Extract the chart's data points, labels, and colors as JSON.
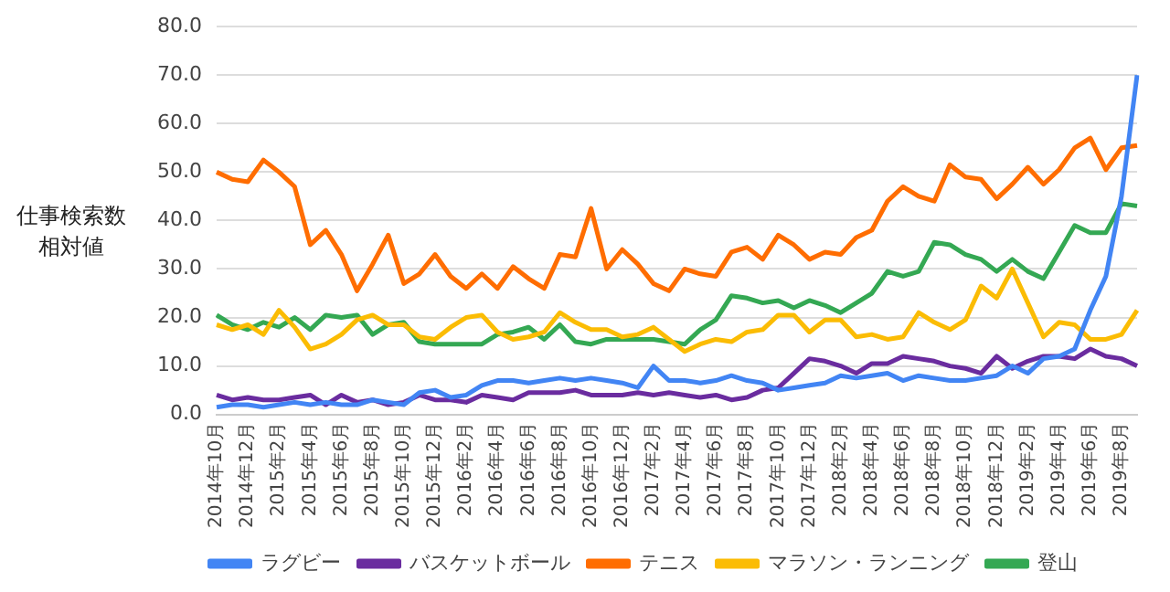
{
  "chart_data": {
    "type": "line",
    "ylabel": "仕事検索数相対値",
    "categories": [
      "2014年10月",
      null,
      "2014年12月",
      null,
      "2015年2月",
      null,
      "2015年4月",
      null,
      "2015年6月",
      null,
      "2015年8月",
      null,
      "2015年10月",
      null,
      "2015年12月",
      null,
      "2016年2月",
      null,
      "2016年4月",
      null,
      "2016年6月",
      null,
      "2016年8月",
      null,
      "2016年10月",
      null,
      "2016年12月",
      null,
      "2017年2月",
      null,
      "2017年4月",
      null,
      "2017年6月",
      null,
      "2017年8月",
      null,
      "2017年10月",
      null,
      "2017年12月",
      null,
      "2018年2月",
      null,
      "2018年4月",
      null,
      "2018年6月",
      null,
      "2018年8月",
      null,
      "2018年10月",
      null,
      "2018年12月",
      null,
      "2019年2月",
      null,
      "2019年4月",
      null,
      "2019年6月",
      null,
      "2019年8月",
      null
    ],
    "series": [
      {
        "name": "ラグビー",
        "color": "#4285f4",
        "values": [
          1.5,
          2,
          2,
          1.5,
          2,
          2.5,
          2,
          2.5,
          2,
          2,
          3,
          2.5,
          2,
          4.5,
          5,
          3.5,
          4,
          6,
          7,
          7,
          6.5,
          7,
          7.5,
          7,
          7.5,
          7,
          6.5,
          5.5,
          10,
          7,
          7,
          6.5,
          7,
          8,
          7,
          6.5,
          5,
          5.5,
          6,
          6.5,
          8,
          7.5,
          8,
          8.5,
          7,
          8,
          7.5,
          7,
          7,
          7.5,
          8,
          10,
          8.5,
          11.5,
          12,
          13.5,
          21.5,
          28.5,
          45,
          70
        ]
      },
      {
        "name": "バスケットボール",
        "color": "#6a2c9f",
        "values": [
          4,
          3,
          3.5,
          3,
          3,
          3.5,
          4,
          2,
          4,
          2.5,
          3,
          2,
          2.5,
          4,
          3,
          3,
          2.5,
          4,
          3.5,
          3,
          4.5,
          4.5,
          4.5,
          5,
          4,
          4,
          4,
          4.5,
          4,
          4.5,
          4,
          3.5,
          4,
          3,
          3.5,
          5,
          5.5,
          8.5,
          11.5,
          11,
          10,
          8.5,
          10.5,
          10.5,
          12,
          11.5,
          11,
          10,
          9.5,
          8.5,
          12,
          9.5,
          11,
          12,
          12,
          11.5,
          13.5,
          12,
          11.5,
          10
        ]
      },
      {
        "name": "テニス",
        "color": "#ff6d01",
        "values": [
          50,
          48.5,
          48,
          52.5,
          50,
          47,
          35,
          38,
          33,
          25.5,
          31,
          37,
          27,
          29,
          33,
          28.5,
          26,
          29,
          26,
          30.5,
          28,
          26,
          33,
          32.5,
          42.5,
          30,
          34,
          31,
          27,
          25.5,
          30,
          29,
          28.5,
          33.5,
          34.5,
          32,
          37,
          35,
          32,
          33.5,
          33,
          36.5,
          38,
          44,
          47,
          45,
          44,
          51.5,
          49,
          48.5,
          44.5,
          47.5,
          51,
          47.5,
          50.5,
          55,
          57,
          50.5,
          55,
          55.5
        ]
      },
      {
        "name": "マラソン・ランニング",
        "color": "#fbbc04",
        "values": [
          18.5,
          17.5,
          18.5,
          16.5,
          21.5,
          18,
          13.5,
          14.5,
          16.5,
          19.5,
          20.5,
          18.5,
          18.5,
          16,
          15.5,
          18,
          20,
          20.5,
          17,
          15.5,
          16,
          17,
          21,
          19,
          17.5,
          17.5,
          16,
          16.5,
          18,
          15.5,
          13,
          14.5,
          15.5,
          15,
          17,
          17.5,
          20.5,
          20.5,
          17,
          19.5,
          19.5,
          16,
          16.5,
          15.5,
          16,
          21,
          19,
          17.5,
          19.5,
          26.5,
          24,
          30,
          23,
          16,
          19,
          18.5,
          15.5,
          15.5,
          16.5,
          21.5
        ]
      },
      {
        "name": "登山",
        "color": "#34a853",
        "values": [
          20.5,
          18.5,
          17.5,
          19,
          18,
          20,
          17.5,
          20.5,
          20,
          20.5,
          16.5,
          18.5,
          19,
          15,
          14.5,
          14.5,
          14.5,
          14.5,
          16.5,
          17,
          18,
          15.5,
          18.5,
          15,
          14.5,
          15.5,
          15.5,
          15.5,
          15.5,
          15,
          14.5,
          17.5,
          19.5,
          24.5,
          24,
          23,
          23.5,
          22,
          23.5,
          22.5,
          21,
          23,
          25,
          29.5,
          28.5,
          29.5,
          35.5,
          35,
          33,
          32,
          29.5,
          32,
          29.5,
          28,
          33.5,
          39,
          37.5,
          37.5,
          43.5,
          43
        ]
      }
    ],
    "ylim": [
      0,
      80
    ],
    "yticks": [
      {
        "value": 0,
        "label": "0.0"
      },
      {
        "value": 10,
        "label": "10.0"
      },
      {
        "value": 20,
        "label": "20.0"
      },
      {
        "value": 30,
        "label": "30.0"
      },
      {
        "value": 40,
        "label": "40.0"
      },
      {
        "value": 50,
        "label": "50.0"
      },
      {
        "value": 60,
        "label": "60.0"
      },
      {
        "value": 70,
        "label": "70.0"
      },
      {
        "value": 80,
        "label": "80.0"
      }
    ],
    "grid": "y",
    "legend": "bottom",
    "marker": "none",
    "line_style": "solid"
  }
}
